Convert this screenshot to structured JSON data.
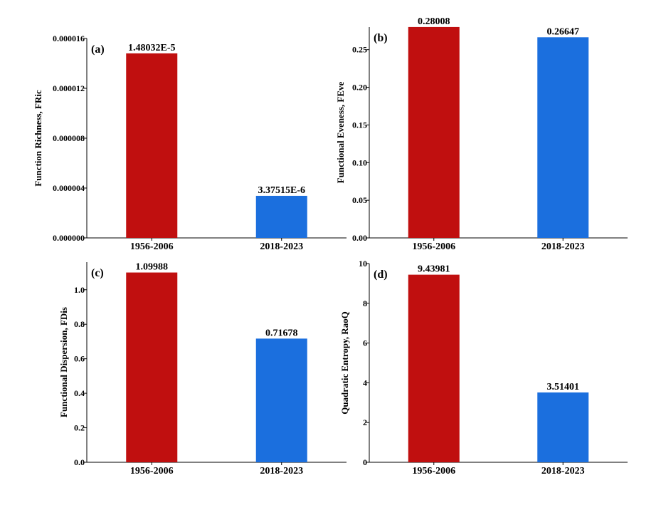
{
  "colors": {
    "period1": "#c00f0f",
    "period2": "#1b6fde",
    "axis": "#000000"
  },
  "chart_data": [
    {
      "panel": "(a)",
      "type": "bar",
      "ylabel": "Function Richness, FRic",
      "categories": [
        "1956-2006",
        "2018-2023"
      ],
      "values": [
        1.48032e-05,
        3.37515e-06
      ],
      "value_labels": [
        "1.48032E-5",
        "3.37515E-6"
      ],
      "ylim": [
        0,
        1.6e-05
      ],
      "yticks": [
        0,
        4e-06,
        8e-06,
        1.2e-05,
        1.6e-05
      ],
      "ytick_labels": [
        "0.000000",
        "0.000004",
        "0.000008",
        "0.000012",
        "0.000016"
      ],
      "grid": false
    },
    {
      "panel": "(b)",
      "type": "bar",
      "ylabel": "Functional Eveness, FEve",
      "categories": [
        "1956-2006",
        "2018-2023"
      ],
      "values": [
        0.28008,
        0.26647
      ],
      "value_labels": [
        "0.28008",
        "0.26647"
      ],
      "ylim": [
        0,
        0.28
      ],
      "yticks": [
        0,
        0.05,
        0.1,
        0.15,
        0.2,
        0.25
      ],
      "ytick_labels": [
        "0.00",
        "0.05",
        "0.10",
        "0.15",
        "0.20",
        "0.25"
      ],
      "grid": false
    },
    {
      "panel": "(c)",
      "type": "bar",
      "ylabel": "Functional Dispersion, FDis",
      "categories": [
        "1956-2006",
        "2018-2023"
      ],
      "values": [
        1.09988,
        0.71678
      ],
      "value_labels": [
        "1.09988",
        "0.71678"
      ],
      "ylim": [
        0,
        1.16
      ],
      "yticks": [
        0,
        0.2,
        0.4,
        0.6,
        0.8,
        1.0
      ],
      "ytick_labels": [
        "0.0",
        "0.2",
        "0.4",
        "0.6",
        "0.8",
        "1.0"
      ],
      "grid": false
    },
    {
      "panel": "(d)",
      "type": "bar",
      "ylabel": "Quadratic Entropy,   RaoQ",
      "categories": [
        "1956-2006",
        "2018-2023"
      ],
      "values": [
        9.43981,
        3.51401
      ],
      "value_labels": [
        "9.43981",
        "3.51401"
      ],
      "ylim": [
        0,
        10
      ],
      "yticks": [
        0,
        2,
        4,
        6,
        8,
        10
      ],
      "ytick_labels": [
        "0",
        "2",
        "4",
        "6",
        "8",
        "10"
      ],
      "grid": false
    }
  ]
}
